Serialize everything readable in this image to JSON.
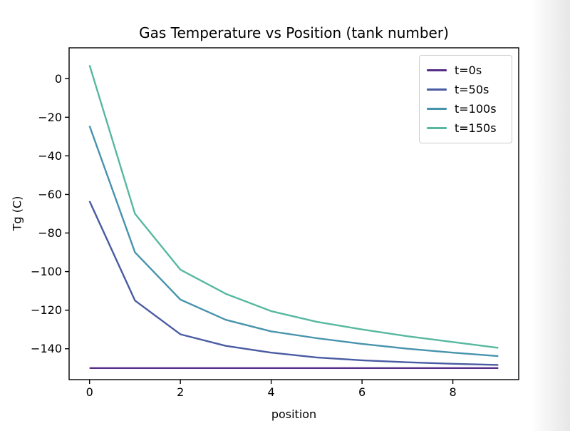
{
  "figure": {
    "title": "Gas Temperature vs Position (tank number)",
    "background_color": "#ffffff",
    "axis_color": "#000000",
    "legend_border_color": "#cccccc"
  },
  "chart_data": {
    "type": "line",
    "title": "Gas Temperature vs Position (tank number)",
    "xlabel": "position",
    "ylabel": "Tg (C)",
    "x": [
      0,
      1,
      2,
      3,
      4,
      5,
      6,
      7,
      8,
      9
    ],
    "series": [
      {
        "name": "t=0s",
        "color": "#552d87",
        "values": [
          -150,
          -150,
          -150,
          -150,
          -150,
          -150,
          -150,
          -150,
          -150,
          -150
        ]
      },
      {
        "name": "t=50s",
        "color": "#4a5ba3",
        "values": [
          -63.5,
          -115,
          -132.5,
          -138.5,
          -142,
          -144.5,
          -146,
          -147,
          -147.8,
          -148.4
        ]
      },
      {
        "name": "t=100s",
        "color": "#4793ad",
        "values": [
          -24.5,
          -90,
          -114.5,
          -125,
          -131,
          -134.5,
          -137.5,
          -140,
          -142,
          -143.8
        ]
      },
      {
        "name": "t=150s",
        "color": "#57b8a0",
        "values": [
          7,
          -70,
          -99,
          -111.5,
          -120.5,
          -126,
          -130,
          -133.5,
          -136.5,
          -139.5
        ]
      }
    ],
    "xlim": [
      -0.45,
      9.45
    ],
    "ylim": [
      -156,
      16
    ],
    "xticks": [
      0,
      2,
      4,
      6,
      8
    ],
    "xtick_labels": [
      "0",
      "2",
      "4",
      "6",
      "8"
    ],
    "yticks": [
      0,
      -20,
      -40,
      -60,
      -80,
      -100,
      -120,
      -140
    ],
    "ytick_labels": [
      "0",
      "−20",
      "−40",
      "−60",
      "−80",
      "−100",
      "−120",
      "−140"
    ],
    "grid": false,
    "legend": {
      "position": "upper right",
      "entries": [
        "t=0s",
        "t=50s",
        "t=100s",
        "t=150s"
      ]
    }
  }
}
